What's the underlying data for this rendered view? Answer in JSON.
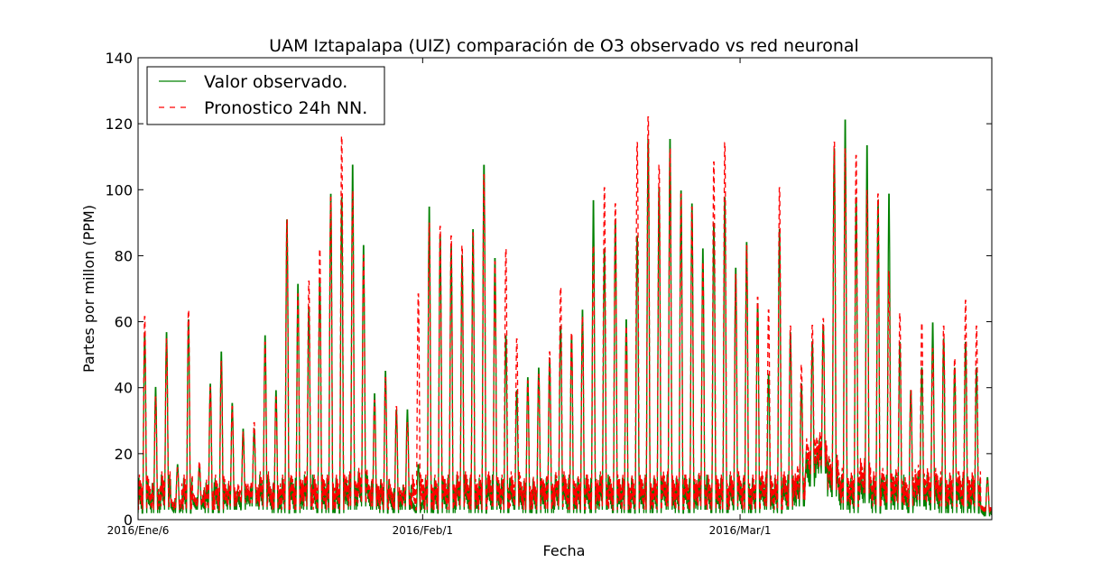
{
  "chart_data": {
    "type": "line",
    "title": "UAM Iztapalapa (UIZ) comparación de O3 observado vs red neuronal",
    "xlabel": "Fecha",
    "ylabel": "Partes por millon (PPM)",
    "xlim": [
      "2016-01-06",
      "2016-03-24"
    ],
    "ylim": [
      0,
      140
    ],
    "y_ticks": [
      0,
      20,
      40,
      60,
      80,
      100,
      120,
      140
    ],
    "x_ticks": [
      {
        "date": "2016-01-06",
        "label": "2016/Ene/6"
      },
      {
        "date": "2016-02-01",
        "label": "2016/Feb/1"
      },
      {
        "date": "2016-03-01",
        "label": "2016/Mar/1"
      }
    ],
    "grid": false,
    "legend_position": "top-left",
    "x_start": "2016-01-06",
    "x_step_hours": 24,
    "series": [
      {
        "name": "Valor observado.",
        "color": "#008000",
        "style": "solid",
        "daily_peak": [
          58,
          41,
          58,
          17,
          62,
          17,
          42,
          52,
          36,
          28,
          28,
          57,
          40,
          93,
          73,
          66,
          75,
          101,
          100,
          110,
          85,
          39,
          46,
          34,
          34,
          17,
          97,
          88,
          85,
          82,
          90,
          110,
          81,
          57,
          40,
          44,
          47,
          50,
          60,
          57,
          65,
          99,
          84,
          93,
          62,
          88,
          118,
          103,
          118,
          102,
          98,
          84,
          92,
          100,
          78,
          86,
          67,
          45,
          90,
          58,
          42,
          55,
          60,
          115,
          124,
          100,
          116,
          99,
          101,
          55,
          40,
          47,
          61,
          56,
          47,
          55,
          47,
          13
        ],
        "daily_min": [
          2,
          2,
          3,
          2,
          2,
          3,
          2,
          2,
          3,
          3,
          4,
          3,
          2,
          2,
          2,
          3,
          2,
          2,
          2,
          3,
          4,
          3,
          2,
          2,
          3,
          2,
          2,
          2,
          2,
          3,
          2,
          2,
          3,
          2,
          3,
          2,
          2,
          2,
          3,
          2,
          2,
          2,
          3,
          2,
          2,
          2,
          2,
          2,
          3,
          2,
          2,
          3,
          2,
          2,
          3,
          2,
          2,
          3,
          2,
          3,
          4,
          10,
          14,
          7,
          3,
          2,
          5,
          2,
          3,
          3,
          2,
          4,
          3,
          2,
          2,
          2,
          2,
          1
        ]
      },
      {
        "name": "Pronostico 24h NN.",
        "color": "#ff0000",
        "style": "dashed",
        "daily_peak": [
          63,
          38,
          56,
          16,
          65,
          18,
          41,
          49,
          35,
          27,
          30,
          55,
          38,
          93,
          70,
          74,
          84,
          100,
          119,
          102,
          82,
          37,
          44,
          35,
          30,
          70,
          92,
          91,
          88,
          85,
          89,
          107,
          80,
          84,
          56,
          43,
          45,
          52,
          72,
          58,
          63,
          85,
          103,
          98,
          60,
          117,
          125,
          110,
          115,
          101,
          97,
          80,
          111,
          117,
          76,
          85,
          69,
          65,
          103,
          60,
          48,
          60,
          62,
          117,
          115,
          113,
          102,
          101,
          77,
          64,
          40,
          61,
          53,
          60,
          50,
          68,
          60,
          12
        ],
        "daily_min": [
          3,
          3,
          4,
          3,
          3,
          4,
          3,
          3,
          4,
          5,
          5,
          4,
          3,
          3,
          3,
          4,
          3,
          3,
          3,
          4,
          5,
          4,
          3,
          3,
          4,
          3,
          3,
          3,
          3,
          4,
          3,
          3,
          4,
          3,
          4,
          3,
          3,
          3,
          4,
          3,
          3,
          3,
          4,
          3,
          3,
          3,
          3,
          3,
          4,
          3,
          3,
          4,
          3,
          3,
          4,
          3,
          3,
          4,
          3,
          4,
          6,
          14,
          16,
          9,
          5,
          4,
          8,
          4,
          5,
          5,
          4,
          6,
          5,
          4,
          4,
          4,
          4,
          2
        ]
      }
    ]
  }
}
